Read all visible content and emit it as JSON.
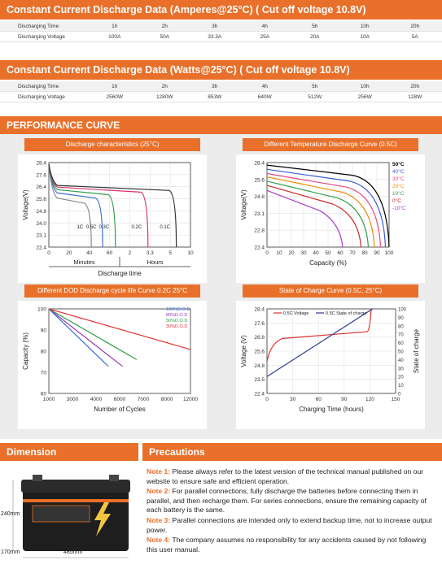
{
  "tables": [
    {
      "title": "Constant Current Discharge Data (Amperes@25°C) ( Cut off voltage 10.8V)",
      "header": [
        "Discharging Time",
        "1h",
        "2h",
        "3h",
        "4h",
        "5h",
        "10h",
        "20h"
      ],
      "row": [
        "Discharging Voltage",
        "100A",
        "50A",
        "33.3A",
        "25A",
        "20A",
        "10A",
        "5A"
      ]
    },
    {
      "title": "Constant Current Discharge Data (Watts@25°C) ( Cut off voltage 10.8V)",
      "header": [
        "Discharging Time",
        "1h",
        "2h",
        "3h",
        "4h",
        "5h",
        "10h",
        "20h"
      ],
      "row": [
        "Discharging Voltage",
        "2560W",
        "1280W",
        "853W",
        "640W",
        "512W",
        "256W",
        "128W"
      ]
    }
  ],
  "performance": {
    "title": "PERFORMANCE CURVE",
    "charts": [
      {
        "title": "Discharge characteristics (25°C)",
        "ylabel": "Voltage(V)",
        "xlabel": "Discharge time",
        "yticks": [
          "28.4",
          "27.6",
          "26.4",
          "25.6",
          "24.8",
          "24.0",
          "23.1",
          "22.4"
        ],
        "xticks": [
          "0",
          "20",
          "40",
          "60",
          "2",
          "3.3",
          "5",
          "10"
        ],
        "xgroups": [
          "Minutes",
          "Hours"
        ],
        "curve_labels": [
          "1C",
          "0.5C",
          "0.3C",
          "0.2C",
          "0.1C"
        ],
        "colors": [
          "#8a8a8a",
          "#3b6fd1",
          "#2f9e44",
          "#d6336c",
          "#333333"
        ]
      },
      {
        "title": "Different Temperature Discharge Curve (0.5C)",
        "ylabel": "Voltage(V)",
        "xlabel": "Capacity (%)",
        "yticks": [
          "28.4",
          "25.6",
          "24.8",
          "23.1",
          "22.8",
          "22.4"
        ],
        "xticks": [
          "0",
          "10",
          "20",
          "30",
          "40",
          "50",
          "60",
          "70",
          "80",
          "90",
          "100"
        ],
        "legend": [
          "50°C",
          "40°C",
          "30°C",
          "20°C",
          "10°C",
          "0°C",
          "-10°C"
        ],
        "colors": [
          "#000000",
          "#3b5bdb",
          "#e64980",
          "#f08c00",
          "#2f9e44",
          "#c92a2a",
          "#ae3ec9"
        ]
      },
      {
        "title": "Different DOD Discharge cycle life Curve 0.2C 25°C",
        "ylabel": "Capacity (%)",
        "xlabel": "Number of Cycles",
        "yticks": [
          "100",
          "90",
          "80",
          "70",
          "60"
        ],
        "xticks": [
          "1000",
          "3000",
          "4000",
          "6000",
          "7000",
          "8000",
          "12000"
        ],
        "legend": [
          "100%D.O.D",
          "80%D.O.D",
          "50%D.O.D",
          "30%D.O.D"
        ],
        "colors": [
          "#3b6fd1",
          "#9c36b5",
          "#2f9e44",
          "#e03131"
        ]
      },
      {
        "title": "State of Charge Curve (0.5C, 25°C)",
        "ylabel": "Voltage (V)",
        "y2label": "State of charge",
        "xlabel": "Charging Time (hours)",
        "yticks": [
          "28.4",
          "27.6",
          "26.8",
          "25.6",
          "24.8",
          "23.5",
          "22.4"
        ],
        "y2ticks": [
          "100",
          "90",
          "80",
          "70",
          "60",
          "50",
          "40",
          "30",
          "20",
          "10",
          "0"
        ],
        "xticks": [
          "0",
          "30",
          "60",
          "90",
          "120",
          "150"
        ],
        "legend": [
          "0.5C Voltage",
          "0.5C State of charge"
        ],
        "colors": [
          "#e03131",
          "#2b3a8c"
        ]
      }
    ]
  },
  "dimension": {
    "title": "Dimension",
    "height": "240mm",
    "depth": "170mm",
    "length": "485mm"
  },
  "precautions": {
    "title": "Precautions",
    "notes": [
      {
        "label": "Note 1:",
        "text": " Please always refer to the latest version of the technical manual published on our website to ensure safe and efficient operation."
      },
      {
        "label": "Note 2:",
        "text": " For parallel connections, fully discharge the batteries before connecting them in parallel, and then recharge them. For series connections, ensure the remaining capacity of each battery is the same."
      },
      {
        "label": "Note 3:",
        "text": " Parallel connections are intended only to extend backup time, not to increase output power."
      },
      {
        "label": "Note 4:",
        "text": " The company assumes no responsibility for any accidents caused by not following this user manual."
      }
    ]
  }
}
